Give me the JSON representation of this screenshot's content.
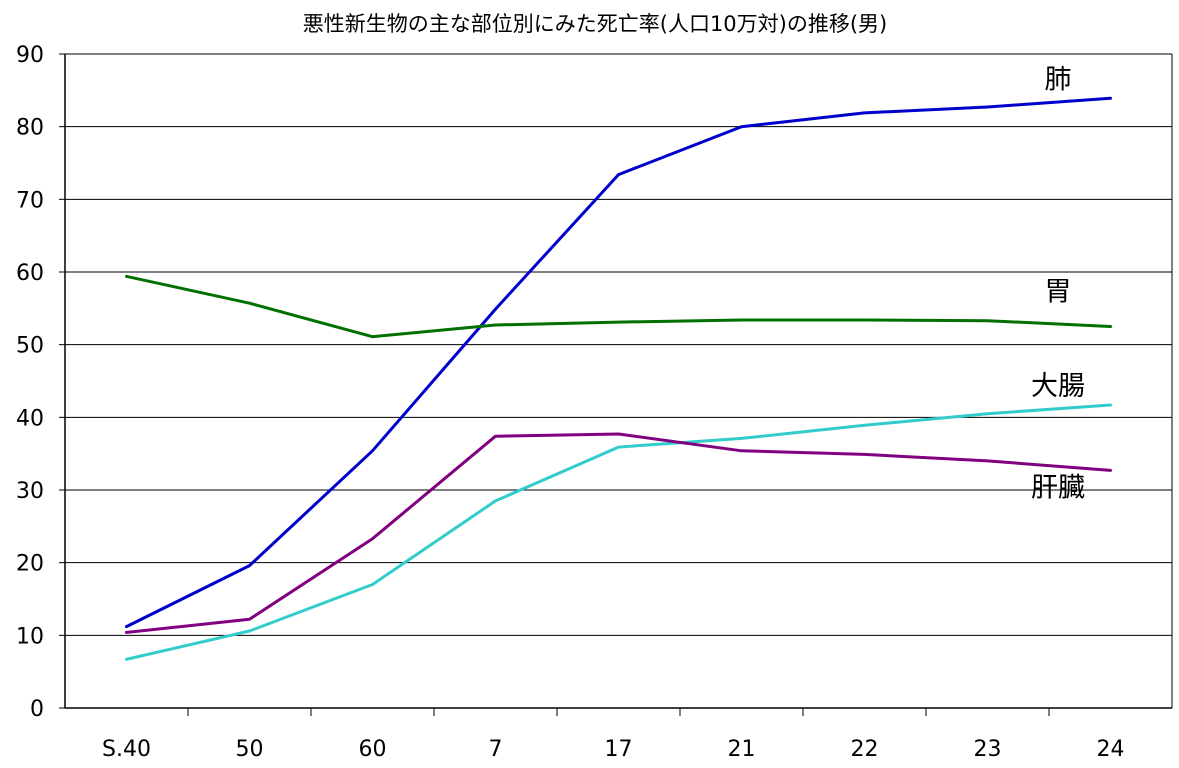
{
  "chart_data": {
    "type": "line",
    "title": "悪性新生物の主な部位別にみた死亡率(人口10万対)の推移(男)",
    "xlabel": "",
    "ylabel": "",
    "categories": [
      "S.40",
      "50",
      "60",
      "7",
      "17",
      "21",
      "22",
      "23",
      "24"
    ],
    "ylim": [
      0,
      90
    ],
    "yticks": [
      0,
      10,
      20,
      30,
      40,
      50,
      60,
      70,
      80,
      90
    ],
    "grid": true,
    "legend": "inline-right",
    "series": [
      {
        "name": "肺",
        "color": "#0000cc",
        "values": [
          11.2,
          19.6,
          35.4,
          54.9,
          73.4,
          80.0,
          81.9,
          82.7,
          83.9
        ]
      },
      {
        "name": "胃",
        "color": "#007000",
        "values": [
          59.4,
          55.7,
          51.1,
          52.7,
          53.1,
          53.4,
          53.4,
          53.3,
          52.5
        ]
      },
      {
        "name": "大腸",
        "color": "#33cccc",
        "values": [
          6.7,
          10.6,
          17.0,
          28.5,
          35.9,
          37.1,
          38.9,
          40.5,
          41.7
        ]
      },
      {
        "name": "肝臓",
        "color": "#800080",
        "values": [
          10.4,
          12.2,
          23.3,
          37.4,
          37.7,
          35.4,
          34.9,
          34.0,
          32.7
        ]
      }
    ]
  }
}
